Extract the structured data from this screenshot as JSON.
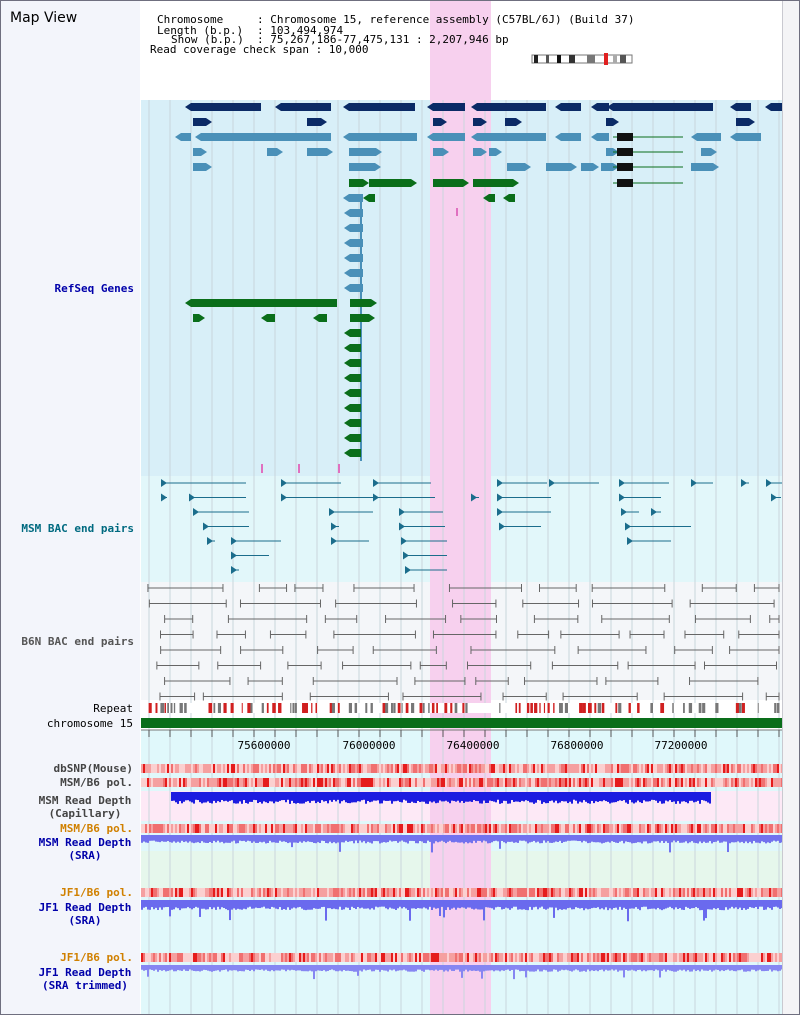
{
  "title": "Map View",
  "info": {
    "chromosome_key": "Chromosome",
    "chromosome_val": ": Chromosome 15, reference assembly (C57BL/6J) (Build 37)",
    "length_key": "Length (b.p.)",
    "length_val": ": 103,494,974",
    "show_key": "Show (b.p.)",
    "show_val": ": 75,267,186-77,475,131 : 2,207,946 bp",
    "coverage": "Read coverage check span : 10,000"
  },
  "tracks": {
    "refseq": "RefSeq Genes",
    "msm_bac": "MSM BAC end pairs",
    "b6n_bac": "B6N BAC end pairs",
    "repeat": "Repeat",
    "chromosome": "chromosome 15",
    "dbsnp": "dbSNP(Mouse)",
    "msm_b6_pol_1": "MSM/B6 pol.",
    "msm_depth_cap": "MSM Read Depth\n(Capillary)",
    "msm_b6_pol_2": "MSM/B6 pol.",
    "msm_depth_sra": "MSM Read Depth\n(SRA)",
    "jf1_b6_pol_1": "JF1/B6 pol.",
    "jf1_depth_sra": "JF1 Read Depth\n(SRA)",
    "jf1_b6_pol_2": "JF1/B6 pol.",
    "jf1_depth_trim": "JF1 Read Depth\n(SRA trimmed)"
  },
  "axis": {
    "ticks": [
      "75600000",
      "76000000",
      "76400000",
      "76800000",
      "77200000"
    ]
  },
  "colors": {
    "refseq_bg": "#d8eff8",
    "bac_bg": "#e2f7fa",
    "b6n_bg": "#f4f6f9",
    "highlight": "#f7d0ee",
    "navy": "#0b2a66",
    "teal": "#4a90b8",
    "green": "#0a6e1a",
    "msm_label": "#006a80",
    "b6n_label": "#555555",
    "blue_label": "#0000aa",
    "orange_label": "#d08000",
    "depth_blue": "#2222dd",
    "depth_light": "#7070ee"
  }
}
